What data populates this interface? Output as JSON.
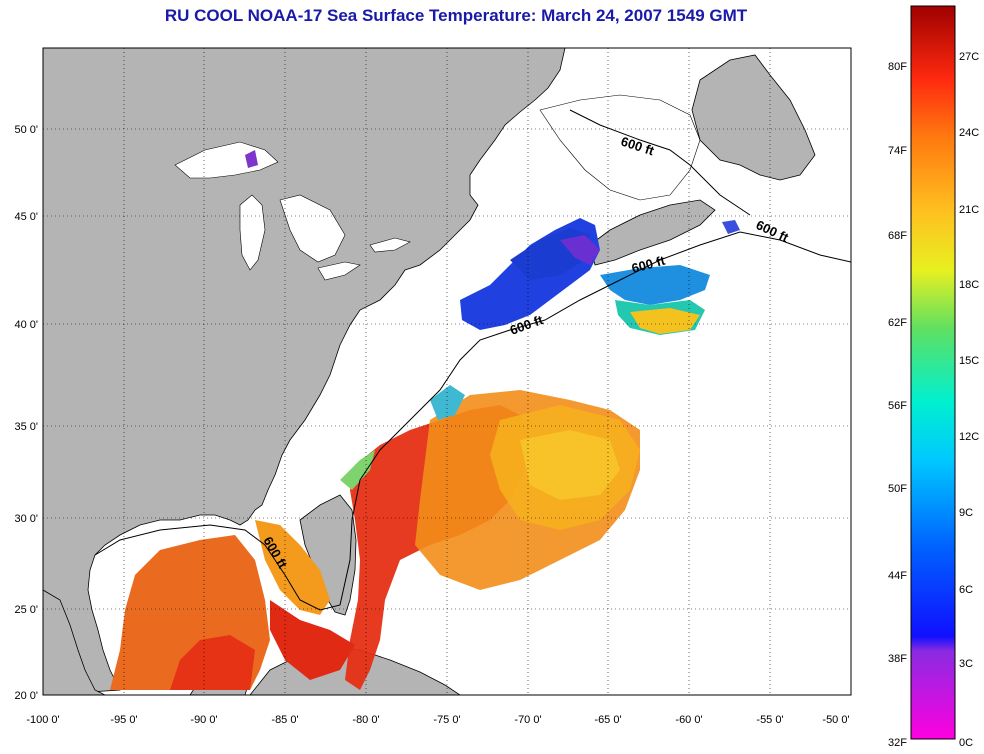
{
  "title": "RU COOL  NOAA-17  Sea Surface Temperature:  March 24, 2007 1549 GMT",
  "map": {
    "longitude_ticks": [
      "-100 0'",
      "-95 0'",
      "-90 0'",
      "-85 0'",
      "-80 0'",
      "-75 0'",
      "-70 0'",
      "-65 0'",
      "-60 0'",
      "-55 0'",
      "-50 0'"
    ],
    "latitude_ticks": [
      "20 0'",
      "25 0'",
      "30 0'",
      "35 0'",
      "40 0'",
      "45 0'",
      "50 0'"
    ],
    "contour_label": "600 ft",
    "colors": {
      "land": "#b4b4b4",
      "water_nodata": "#ffffff",
      "title": "#1a1aa8"
    }
  },
  "colorbar": {
    "fahrenheit_labels": [
      "32F",
      "38F",
      "44F",
      "50F",
      "56F",
      "62F",
      "68F",
      "74F",
      "80F"
    ],
    "celsius_labels": [
      "0C",
      "3C",
      "6C",
      "9C",
      "12C",
      "15C",
      "18C",
      "21C",
      "24C",
      "27C"
    ],
    "range_c": [
      0,
      29
    ]
  }
}
